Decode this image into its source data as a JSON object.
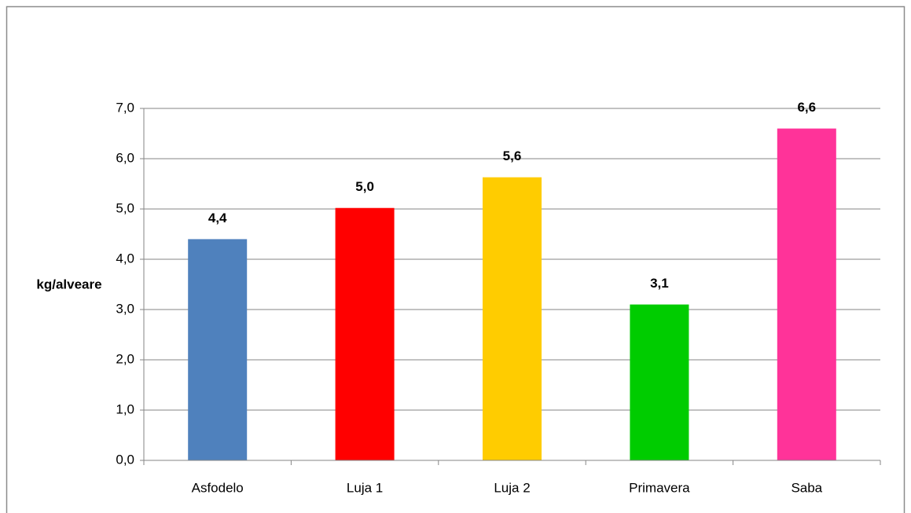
{
  "chart_data": {
    "type": "bar",
    "y_label": "kg/alveare",
    "categories": [
      "Asfodelo",
      "Luja 1",
      "Luja 2",
      "Primavera",
      "Saba"
    ],
    "values": [
      4.4,
      5.02,
      5.63,
      3.1,
      6.6
    ],
    "value_labels": [
      "4,4",
      "5,0",
      "5,6",
      "3,1",
      "6,6"
    ],
    "colors": [
      "#4f81bd",
      "#ff0000",
      "#ffcc00",
      "#00cc00",
      "#ff3399"
    ],
    "ylim": [
      0,
      7
    ],
    "yticks": [
      {
        "value": 0,
        "label": "0,0"
      },
      {
        "value": 1,
        "label": "1,0"
      },
      {
        "value": 2,
        "label": "2,0"
      },
      {
        "value": 3,
        "label": "3,0"
      },
      {
        "value": 4,
        "label": "4,0"
      },
      {
        "value": 5,
        "label": "5,0"
      },
      {
        "value": 6,
        "label": "6,0"
      },
      {
        "value": 7,
        "label": "7,0"
      }
    ],
    "grid": true
  }
}
